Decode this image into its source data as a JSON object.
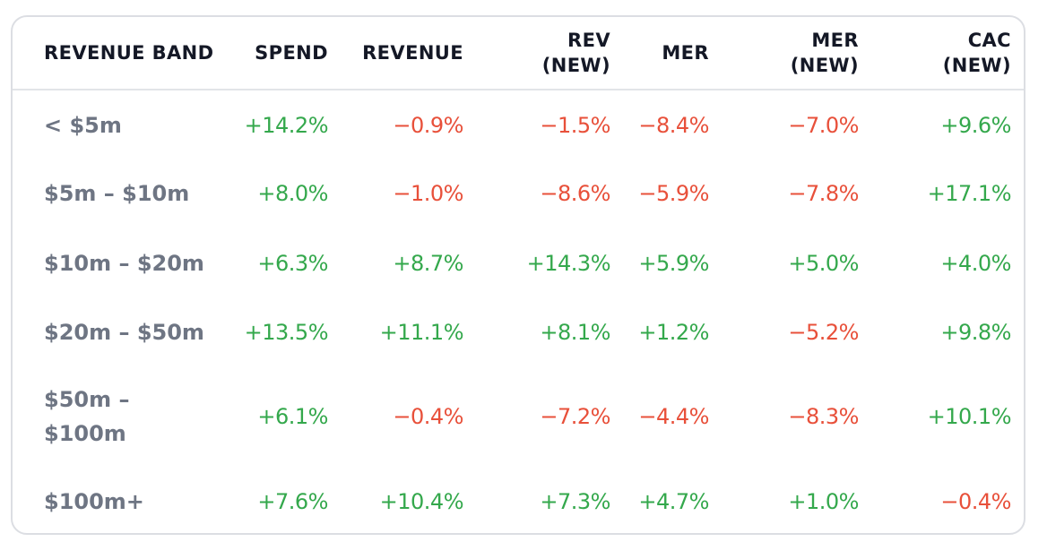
{
  "table": {
    "headers": {
      "band": "REVENUE BAND",
      "spend": "SPEND",
      "revenue": "REVENUE",
      "rev_new_1": "REV",
      "rev_new_2": "(NEW)",
      "mer": "MER",
      "mer_new_1": "MER",
      "mer_new_2": "(NEW)",
      "cac_new_1": "CAC",
      "cac_new_2": "(NEW)"
    },
    "rows": [
      {
        "band_1": "< $5m",
        "band_2": "",
        "spend": "+14.2%",
        "revenue": "−0.9%",
        "rev_new": "−1.5%",
        "mer": "−8.4%",
        "mer_new": "−7.0%",
        "cac_new": "+9.6%"
      },
      {
        "band_1": "$5m – $10m",
        "band_2": "",
        "spend": "+8.0%",
        "revenue": "−1.0%",
        "rev_new": "−8.6%",
        "mer": "−5.9%",
        "mer_new": "−7.8%",
        "cac_new": "+17.1%"
      },
      {
        "band_1": "$10m – $20m",
        "band_2": "",
        "spend": "+6.3%",
        "revenue": "+8.7%",
        "rev_new": "+14.3%",
        "mer": "+5.9%",
        "mer_new": "+5.0%",
        "cac_new": "+4.0%"
      },
      {
        "band_1": "$20m – $50m",
        "band_2": "",
        "spend": "+13.5%",
        "revenue": "+11.1%",
        "rev_new": "+8.1%",
        "mer": "+1.2%",
        "mer_new": "−5.2%",
        "cac_new": "+9.8%"
      },
      {
        "band_1": "$50m –",
        "band_2": "$100m",
        "spend": "+6.1%",
        "revenue": "−0.4%",
        "rev_new": "−7.2%",
        "mer": "−4.4%",
        "mer_new": "−8.3%",
        "cac_new": "+10.1%"
      },
      {
        "band_1": "$100m+",
        "band_2": "",
        "spend": "+7.6%",
        "revenue": "+10.4%",
        "rev_new": "+7.3%",
        "mer": "+4.7%",
        "mer_new": "+1.0%",
        "cac_new": "−0.4%"
      }
    ]
  },
  "colors": {
    "positive": "#34a84c",
    "negative": "#e8503a",
    "band_text": "#6e7583",
    "header_text": "#141826",
    "border": "#dcdee3"
  }
}
